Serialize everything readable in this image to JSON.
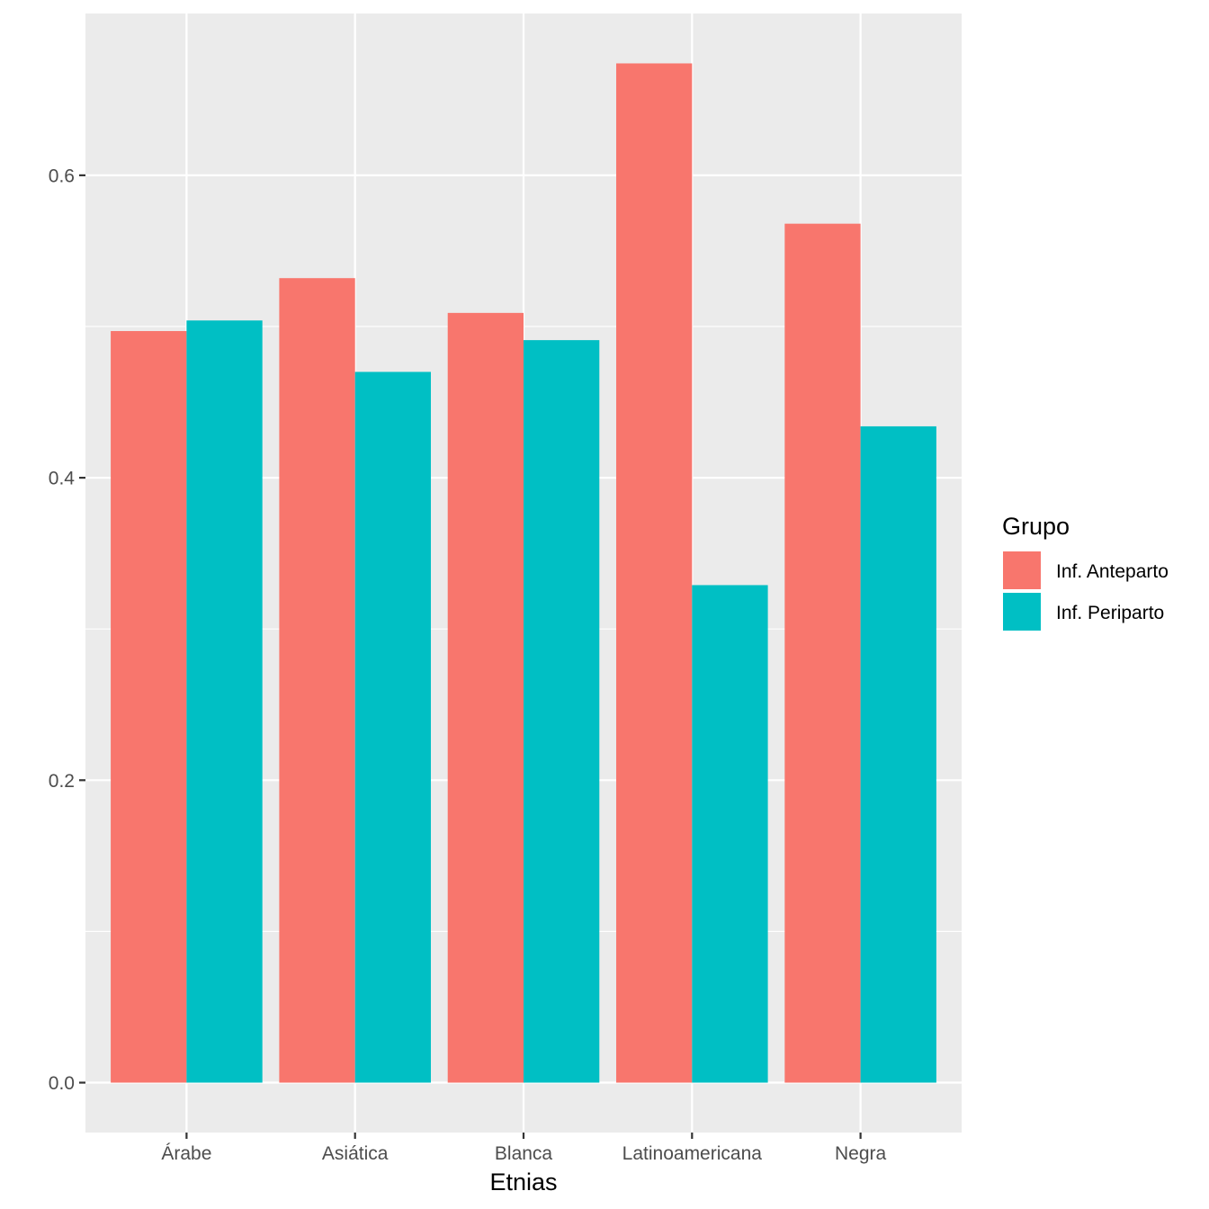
{
  "chart_data": {
    "type": "bar",
    "xlabel": "Etnias",
    "ylabel": "",
    "categories": [
      "Árabe",
      "Asiática",
      "Blanca",
      "Latinoamericana",
      "Negra"
    ],
    "series": [
      {
        "name": "Inf. Anteparto",
        "color": "#F8766D",
        "values": [
          0.497,
          0.532,
          0.509,
          0.674,
          0.568
        ]
      },
      {
        "name": "Inf. Periparto",
        "color": "#00BFC4",
        "values": [
          0.504,
          0.47,
          0.491,
          0.329,
          0.434
        ]
      }
    ],
    "ylim": [
      -0.033,
      0.707
    ],
    "yticks": [
      0.0,
      0.2,
      0.4,
      0.6
    ],
    "ytick_labels": [
      "0.0",
      "0.2",
      "0.4",
      "0.6"
    ],
    "grid": true,
    "panel_background": "#EBEBEB",
    "legend": {
      "title": "Grupo",
      "position": "right"
    }
  }
}
